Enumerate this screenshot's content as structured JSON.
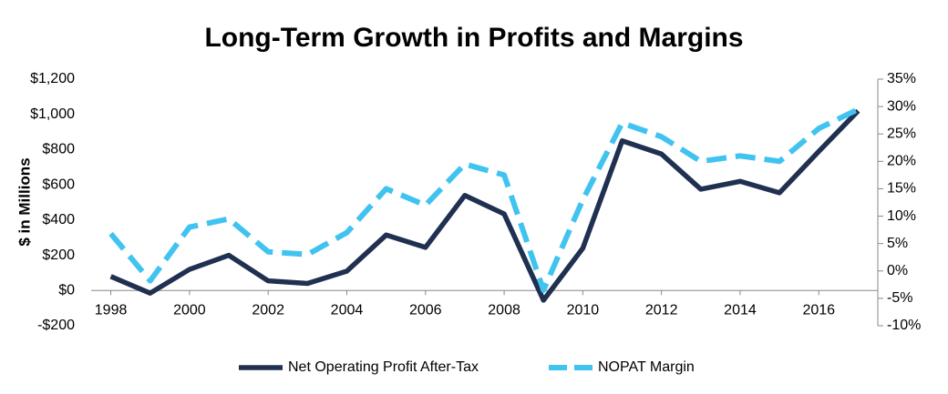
{
  "chart_data": {
    "type": "line",
    "title": "Long-Term Growth in Profits and Margins",
    "ylabel": "$ in Millions",
    "x": [
      1998,
      1999,
      2000,
      2001,
      2002,
      2003,
      2004,
      2005,
      2006,
      2007,
      2008,
      2009,
      2010,
      2011,
      2012,
      2013,
      2014,
      2015,
      2016,
      2017
    ],
    "xlim": [
      1997.5,
      2017.5
    ],
    "xticks": [
      1998,
      2000,
      2002,
      2004,
      2006,
      2008,
      2010,
      2012,
      2014,
      2016
    ],
    "ylim": [
      -200,
      1200
    ],
    "yticks": [
      {
        "value": -200,
        "label": "-$200"
      },
      {
        "value": 0,
        "label": "$0"
      },
      {
        "value": 200,
        "label": "$200"
      },
      {
        "value": 400,
        "label": "$400"
      },
      {
        "value": 600,
        "label": "$600"
      },
      {
        "value": 800,
        "label": "$800"
      },
      {
        "value": 1000,
        "label": "$1,000"
      },
      {
        "value": 1200,
        "label": "$1,200"
      }
    ],
    "y2lim": [
      -10,
      35
    ],
    "y2ticks": [
      {
        "value": -10,
        "label": "-10%"
      },
      {
        "value": -5,
        "label": "-5%"
      },
      {
        "value": 0,
        "label": "0%"
      },
      {
        "value": 5,
        "label": "5%"
      },
      {
        "value": 10,
        "label": "10%"
      },
      {
        "value": 15,
        "label": "15%"
      },
      {
        "value": 20,
        "label": "20%"
      },
      {
        "value": 25,
        "label": "25%"
      },
      {
        "value": 30,
        "label": "30%"
      },
      {
        "value": 35,
        "label": "35%"
      }
    ],
    "legend": "bottom",
    "series": [
      {
        "name": "Net Operating Profit After-Tax",
        "color": "#1f3050",
        "dash": false,
        "values": [
          80,
          -15,
          120,
          200,
          55,
          40,
          110,
          315,
          245,
          540,
          435,
          -55,
          240,
          850,
          775,
          575,
          620,
          555,
          790,
          1020
        ]
      },
      {
        "name": "NOPAT Margin",
        "color": "#41c3f0",
        "dash": true,
        "axis": "y2",
        "values": [
          6.8,
          -1.8,
          8,
          9.5,
          3.5,
          3,
          7,
          15,
          12,
          19.5,
          17.5,
          -3.5,
          13,
          27,
          24.5,
          20,
          21,
          20,
          26,
          29.5
        ]
      }
    ]
  }
}
